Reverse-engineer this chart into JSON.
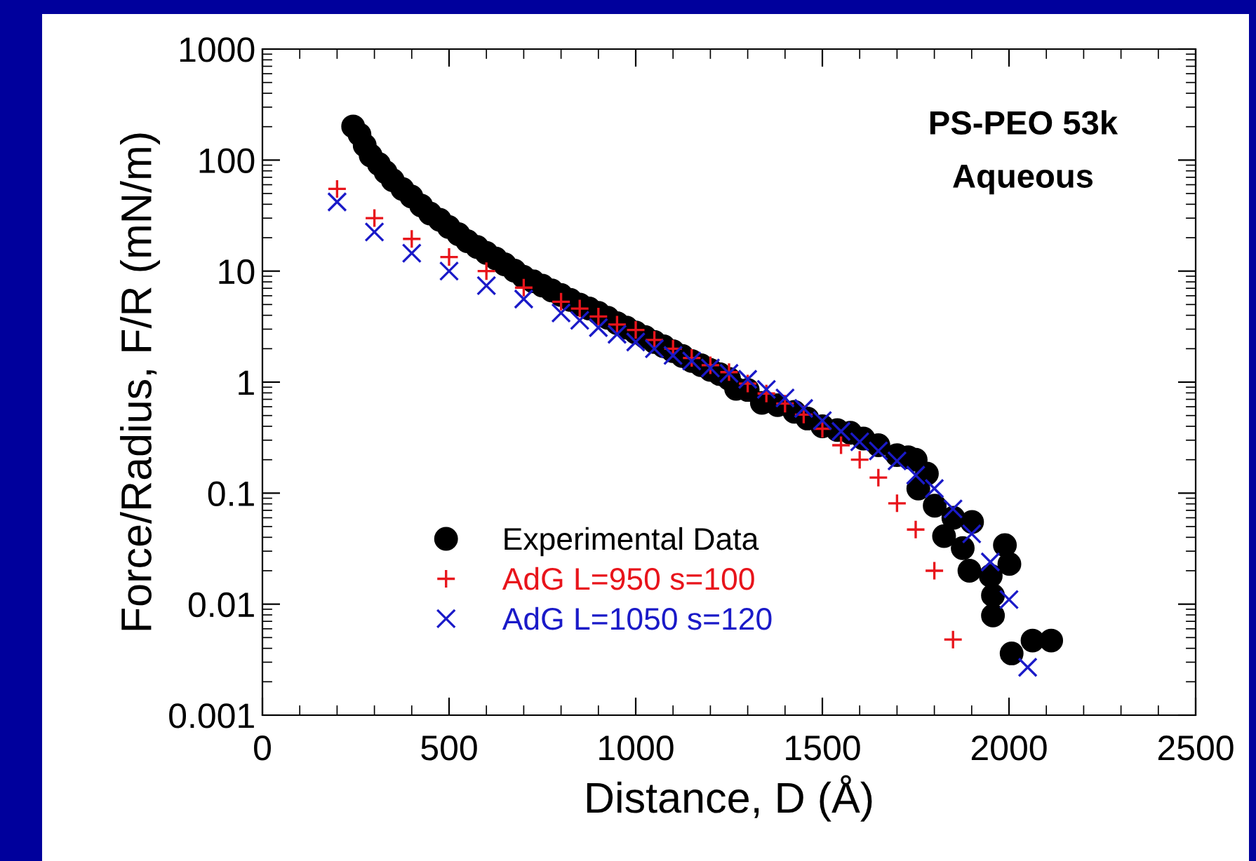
{
  "chart_data": {
    "type": "scatter",
    "xlabel": "Distance, D (Å)",
    "ylabel": "Force/Radius, F/R (mN/m)",
    "xlim": [
      0,
      2500
    ],
    "xticks": [
      0,
      500,
      1000,
      1500,
      2000,
      2500
    ],
    "ylim": [
      0.001,
      1000
    ],
    "yticks": [
      0.001,
      0.01,
      0.1,
      1,
      10,
      100,
      1000
    ],
    "log": true,
    "grid": false,
    "legend": "bottom left",
    "annotations": [
      "PS-PEO 53k",
      "Aqueous"
    ],
    "series": [
      {
        "name": "Experimental Data",
        "color": "#000000",
        "marker": "circle",
        "x": [
          243,
          260,
          274,
          290,
          312,
          330,
          349,
          375,
          399,
          425,
          449,
          475,
          499,
          525,
          549,
          575,
          600,
          625,
          649,
          675,
          699,
          725,
          750,
          775,
          800,
          825,
          850,
          875,
          900,
          925,
          950,
          975,
          1000,
          1025,
          1050,
          1075,
          1100,
          1125,
          1150,
          1175,
          1200,
          1225,
          1250,
          1269,
          1300,
          1338,
          1380,
          1425,
          1460,
          1500,
          1540,
          1575,
          1610,
          1650,
          1700,
          1730,
          1750,
          1757,
          1780,
          1801,
          1826,
          1851,
          1876,
          1894,
          1901,
          1951,
          1957,
          1957,
          1989,
          2001,
          2007,
          2063,
          2113
        ],
        "values": [
          201,
          170,
          136,
          110,
          92,
          78,
          66,
          55,
          47,
          39,
          33,
          29,
          25,
          21.5,
          18.6,
          16.5,
          14.6,
          13,
          11.5,
          10.1,
          8.9,
          8.1,
          7.4,
          6.7,
          6.1,
          5.5,
          5.0,
          4.6,
          4.2,
          3.8,
          3.4,
          3.1,
          2.8,
          2.55,
          2.3,
          2.1,
          1.9,
          1.72,
          1.55,
          1.42,
          1.29,
          1.18,
          1.07,
          0.87,
          0.85,
          0.65,
          0.62,
          0.54,
          0.47,
          0.4,
          0.37,
          0.35,
          0.31,
          0.27,
          0.22,
          0.21,
          0.2,
          0.11,
          0.15,
          0.077,
          0.041,
          0.06,
          0.032,
          0.02,
          0.055,
          0.018,
          0.012,
          0.0079,
          0.034,
          0.023,
          0.0036,
          0.0047,
          0.0047
        ]
      },
      {
        "name": "AdG L=950 s=100",
        "color": "#e8141b",
        "marker": "plus",
        "x": [
          200,
          300,
          400,
          500,
          600,
          700,
          800,
          850,
          900,
          950,
          1000,
          1050,
          1100,
          1150,
          1200,
          1250,
          1300,
          1350,
          1400,
          1450,
          1500,
          1550,
          1600,
          1650,
          1700,
          1750,
          1800,
          1850
        ],
        "values": [
          55,
          30,
          19.5,
          13.4,
          10,
          7.1,
          5.3,
          4.6,
          3.9,
          3.3,
          2.95,
          2.4,
          2.0,
          1.65,
          1.42,
          1.23,
          0.97,
          0.79,
          0.64,
          0.51,
          0.38,
          0.27,
          0.2,
          0.138,
          0.081,
          0.047,
          0.02,
          0.0048
        ]
      },
      {
        "name": "AdG L=1050 s=120",
        "color": "#1a1ac8",
        "marker": "cross",
        "x": [
          200,
          300,
          400,
          500,
          600,
          700,
          800,
          850,
          900,
          950,
          1000,
          1050,
          1100,
          1150,
          1200,
          1250,
          1300,
          1350,
          1400,
          1450,
          1500,
          1550,
          1600,
          1650,
          1700,
          1750,
          1800,
          1850,
          1900,
          1950,
          2000,
          2050
        ],
        "values": [
          42,
          22.5,
          14.5,
          10,
          7.4,
          5.6,
          4.2,
          3.6,
          3.1,
          2.7,
          2.3,
          2.0,
          1.74,
          1.55,
          1.34,
          1.2,
          1.06,
          0.86,
          0.72,
          0.58,
          0.45,
          0.36,
          0.29,
          0.24,
          0.195,
          0.145,
          0.11,
          0.072,
          0.043,
          0.024,
          0.011,
          0.0027
        ]
      }
    ]
  }
}
